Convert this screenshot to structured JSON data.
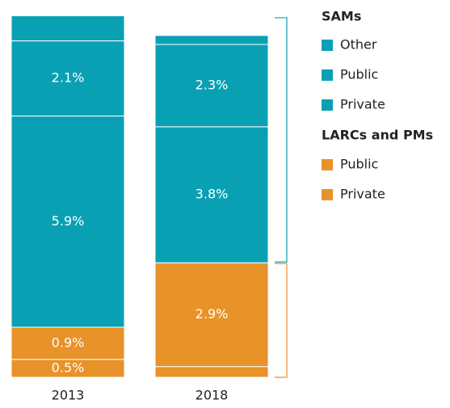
{
  "chart_data": {
    "type": "stacked-bar",
    "categories": [
      "2013",
      "2018"
    ],
    "series": [
      {
        "name": "Private",
        "group": "LARCs and PMs",
        "color": "#e8922a",
        "values": [
          0.5,
          0.3
        ],
        "value_labels": [
          "0.5%",
          null
        ]
      },
      {
        "name": "Public",
        "group": "LARCs and PMs",
        "color": "#e8922a",
        "values": [
          0.9,
          2.9
        ],
        "value_labels": [
          "0.9%",
          "2.9%"
        ]
      },
      {
        "name": "Private",
        "group": "SAMs",
        "color": "#0aa0b4",
        "values": [
          5.9,
          3.8
        ],
        "value_labels": [
          "5.9%",
          "3.8%"
        ]
      },
      {
        "name": "Public",
        "group": "SAMs",
        "color": "#0aa0b4",
        "values": [
          2.1,
          2.3
        ],
        "value_labels": [
          "2.1%",
          "2.3%"
        ]
      },
      {
        "name": "Other",
        "group": "SAMs",
        "color": "#0aa0b4",
        "values": [
          0.7,
          0.25
        ],
        "value_labels": [
          null,
          null
        ]
      }
    ]
  }
}
